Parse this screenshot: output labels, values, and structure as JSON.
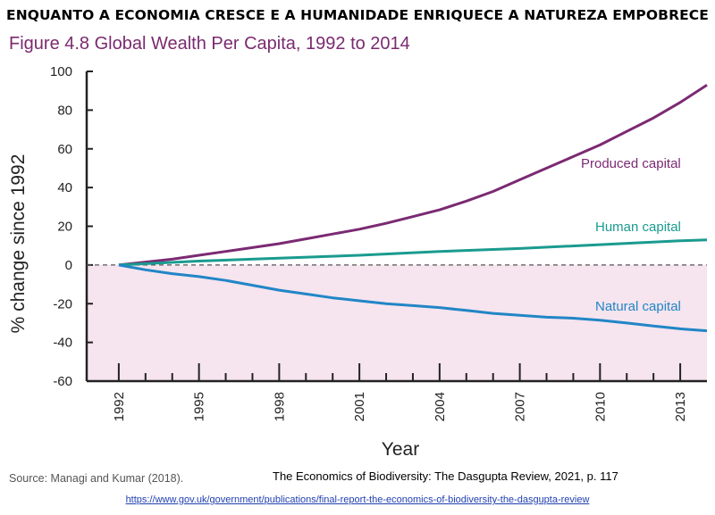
{
  "headline": "ENQUANTO A ECONOMIA CRESCE E A HUMANIDADE ENRIQUECE A NATUREZA EMPOBRECE",
  "figure_title": "Figure 4.8 Global Wealth Per Capita, 1992 to 2014",
  "source": "Source: Managi and Kumar (2018).",
  "reference": "The Economics of Biodiversity: The Dasgupta Review, 2021, p. 117",
  "link": "https://www.gov.uk/government/publications/final-report-the-economics-of-biodiversity-the-dasgupta-review",
  "colors": {
    "produced": "#7b2a73",
    "human": "#1a9b8f",
    "natural": "#2186c6",
    "negative_fill": "#f6e4ef",
    "title": "#7a2a6f"
  },
  "chart_data": {
    "type": "line",
    "xlabel": "Year",
    "ylabel": "% change since 1992",
    "xlim": [
      1990.8,
      2014
    ],
    "ylim": [
      -60,
      100
    ],
    "x_ticks": [
      1992,
      1995,
      1998,
      2001,
      2004,
      2007,
      2010,
      2013
    ],
    "y_ticks": [
      -60,
      -40,
      -20,
      0,
      20,
      40,
      60,
      80,
      100
    ],
    "zero_line": "dashed",
    "negative_region_shaded": true,
    "series": [
      {
        "name": "Produced capital",
        "color_key": "produced",
        "x": [
          1992,
          1993,
          1994,
          1995,
          1996,
          1997,
          1998,
          1999,
          2000,
          2001,
          2002,
          2003,
          2004,
          2005,
          2006,
          2007,
          2008,
          2009,
          2010,
          2011,
          2012,
          2013,
          2014
        ],
        "values": [
          0,
          1.5,
          3,
          5,
          7,
          9,
          11,
          13.5,
          16,
          18.5,
          21.5,
          25,
          28.5,
          33,
          38,
          44,
          50,
          56,
          62,
          69,
          76,
          84,
          93
        ]
      },
      {
        "name": "Human capital",
        "color_key": "human",
        "x": [
          1992,
          1995,
          1998,
          2001,
          2004,
          2007,
          2010,
          2013,
          2014
        ],
        "values": [
          0,
          2,
          3.5,
          5,
          7,
          8.5,
          10.5,
          12.5,
          13
        ]
      },
      {
        "name": "Natural capital",
        "color_key": "natural",
        "x": [
          1992,
          1993,
          1994,
          1995,
          1996,
          1997,
          1998,
          1999,
          2000,
          2001,
          2002,
          2003,
          2004,
          2005,
          2006,
          2007,
          2008,
          2009,
          2010,
          2011,
          2012,
          2013,
          2014
        ],
        "values": [
          0,
          -2.5,
          -4.5,
          -6,
          -8,
          -10.5,
          -13,
          -15,
          -17,
          -18.5,
          -20,
          -21,
          -22,
          -23.5,
          -25,
          -26,
          -27,
          -27.5,
          -28.5,
          -30,
          -31.5,
          -33,
          -34
        ]
      }
    ]
  }
}
